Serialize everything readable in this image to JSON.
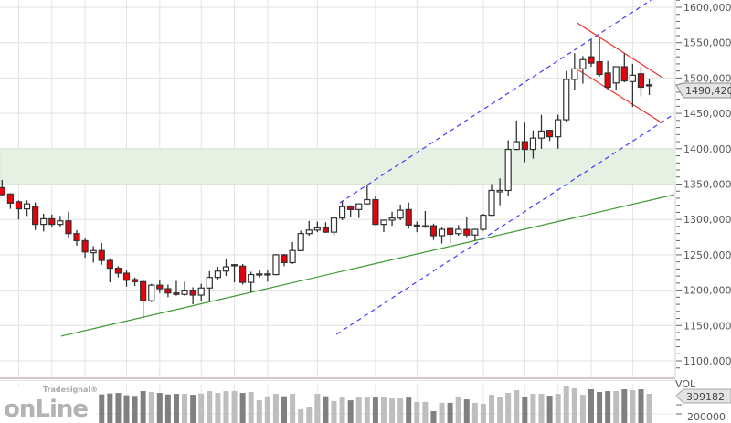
{
  "chart_data": {
    "type": "candlestick",
    "title": "",
    "y_axis": {
      "min": 1080,
      "max": 1610,
      "ticks": [
        "1100,0000",
        "1150,0000",
        "1200,0000",
        "1250,0000",
        "1300,0000",
        "1350,0000",
        "1400,0000",
        "1450,0000",
        "1500,0000",
        "1550,0000",
        "1600,0000"
      ],
      "tick_values": [
        1100,
        1150,
        1200,
        1250,
        1300,
        1350,
        1400,
        1450,
        1500,
        1550,
        1600
      ]
    },
    "grid": true,
    "last_price_label": "1490,4200",
    "last_price": 1490.42,
    "ohlc": [
      [
        1345,
        1356,
        1333,
        1335
      ],
      [
        1336,
        1337,
        1315,
        1323
      ],
      [
        1325,
        1327,
        1300,
        1315
      ],
      [
        1315,
        1327,
        1305,
        1322
      ],
      [
        1318,
        1324,
        1285,
        1293
      ],
      [
        1293,
        1308,
        1283,
        1301
      ],
      [
        1301,
        1307,
        1289,
        1293
      ],
      [
        1293,
        1305,
        1290,
        1298
      ],
      [
        1298,
        1311,
        1275,
        1280
      ],
      [
        1280,
        1285,
        1263,
        1270
      ],
      [
        1270,
        1273,
        1246,
        1254
      ],
      [
        1253,
        1262,
        1239,
        1256
      ],
      [
        1256,
        1267,
        1236,
        1242
      ],
      [
        1242,
        1245,
        1211,
        1231
      ],
      [
        1231,
        1234,
        1218,
        1224
      ],
      [
        1224,
        1229,
        1205,
        1214
      ],
      [
        1215,
        1218,
        1206,
        1212
      ],
      [
        1212,
        1215,
        1162,
        1185
      ],
      [
        1185,
        1209,
        1183,
        1207
      ],
      [
        1207,
        1215,
        1196,
        1202
      ],
      [
        1202,
        1208,
        1190,
        1196
      ],
      [
        1196,
        1213,
        1192,
        1194
      ],
      [
        1194,
        1212,
        1192,
        1200
      ],
      [
        1200,
        1204,
        1180,
        1193
      ],
      [
        1193,
        1209,
        1184,
        1203
      ],
      [
        1203,
        1227,
        1184,
        1218
      ],
      [
        1218,
        1233,
        1215,
        1227
      ],
      [
        1227,
        1244,
        1220,
        1233
      ],
      [
        1236,
        1237,
        1211,
        1236
      ],
      [
        1234,
        1237,
        1208,
        1211
      ],
      [
        1211,
        1226,
        1197,
        1222
      ],
      [
        1223,
        1229,
        1218,
        1223
      ],
      [
        1223,
        1229,
        1212,
        1223
      ],
      [
        1222,
        1251,
        1221,
        1250
      ],
      [
        1250,
        1251,
        1234,
        1239
      ],
      [
        1239,
        1268,
        1237,
        1256
      ],
      [
        1256,
        1284,
        1255,
        1280
      ],
      [
        1280,
        1298,
        1277,
        1285
      ],
      [
        1285,
        1297,
        1282,
        1288
      ],
      [
        1288,
        1296,
        1281,
        1282
      ],
      [
        1282,
        1303,
        1277,
        1302
      ],
      [
        1302,
        1326,
        1299,
        1318
      ],
      [
        1318,
        1320,
        1304,
        1314
      ],
      [
        1314,
        1322,
        1302,
        1322
      ],
      [
        1322,
        1348,
        1321,
        1328
      ],
      [
        1328,
        1333,
        1292,
        1293
      ],
      [
        1293,
        1299,
        1282,
        1299
      ],
      [
        1299,
        1311,
        1291,
        1302
      ],
      [
        1302,
        1321,
        1299,
        1313
      ],
      [
        1314,
        1324,
        1287,
        1292
      ],
      [
        1292,
        1297,
        1282,
        1292
      ],
      [
        1291,
        1312,
        1288,
        1291
      ],
      [
        1291,
        1294,
        1271,
        1277
      ],
      [
        1277,
        1289,
        1266,
        1286
      ],
      [
        1287,
        1289,
        1266,
        1279
      ],
      [
        1280,
        1292,
        1277,
        1286
      ],
      [
        1286,
        1304,
        1275,
        1278
      ],
      [
        1278,
        1287,
        1270,
        1286
      ],
      [
        1286,
        1308,
        1284,
        1306
      ],
      [
        1306,
        1350,
        1305,
        1341
      ],
      [
        1339,
        1358,
        1320,
        1341
      ],
      [
        1341,
        1412,
        1333,
        1399
      ],
      [
        1399,
        1440,
        1398,
        1410
      ],
      [
        1410,
        1437,
        1381,
        1399
      ],
      [
        1399,
        1426,
        1386,
        1415
      ],
      [
        1415,
        1448,
        1400,
        1425
      ],
      [
        1426,
        1427,
        1411,
        1417
      ],
      [
        1417,
        1448,
        1400,
        1441
      ],
      [
        1441,
        1510,
        1437,
        1498
      ],
      [
        1498,
        1535,
        1483,
        1513
      ],
      [
        1513,
        1531,
        1492,
        1526
      ],
      [
        1530,
        1555,
        1516,
        1521
      ],
      [
        1523,
        1557,
        1502,
        1505
      ],
      [
        1507,
        1524,
        1483,
        1487
      ],
      [
        1493,
        1516,
        1483,
        1516
      ],
      [
        1516,
        1535,
        1494,
        1496
      ],
      [
        1495,
        1520,
        1459,
        1504
      ],
      [
        1506,
        1516,
        1474,
        1487
      ],
      [
        1489,
        1498,
        1476,
        1490.42
      ]
    ],
    "volume": {
      "label": "VOL",
      "last_label": "309182",
      "ticks": [
        "200000"
      ],
      "values": [
        null,
        null,
        null,
        null,
        null,
        null,
        null,
        null,
        null,
        null,
        null,
        null,
        306000,
        311000,
        314000,
        301000,
        298000,
        324000,
        319000,
        314000,
        306000,
        309000,
        309000,
        304000,
        311000,
        324000,
        314000,
        324000,
        324000,
        314000,
        319000,
        274000,
        296000,
        309000,
        296000,
        309000,
        225000,
        236000,
        309000,
        296000,
        270000,
        289000,
        274000,
        289000,
        289000,
        289000,
        294000,
        284000,
        284000,
        289000,
        265000,
        265000,
        215000,
        260000,
        260000,
        294000,
        279000,
        260000,
        255000,
        304000,
        294000,
        314000,
        329000,
        294000,
        309000,
        309000,
        299000,
        309000,
        349000,
        339000,
        304000,
        334000,
        319000,
        324000,
        324000,
        334000,
        329000,
        334000,
        309182
      ]
    },
    "annotations": {
      "support_zone": {
        "from": 1350,
        "to": 1400,
        "color": "#e6f1e3"
      },
      "trendline": {
        "color": "#3a9a30",
        "points": [
          [
            7.1,
            1135
          ],
          [
            81,
            1335
          ]
        ]
      },
      "channel_upper": {
        "color": "#3b3bff",
        "style": "dashed",
        "points": [
          [
            40.7,
            1323.5
          ],
          [
            78.2,
            1610
          ]
        ]
      },
      "channel_lower": {
        "color": "#3b3bff",
        "style": "dashed",
        "points": [
          [
            40.3,
            1137.5
          ],
          [
            81,
            1449
          ]
        ]
      },
      "flag_upper": {
        "color": "#f03030",
        "points": [
          [
            69.3,
            1578
          ],
          [
            79.6,
            1500.5
          ]
        ]
      },
      "flag_lower": {
        "color": "#f03030",
        "points": [
          [
            69.5,
            1511
          ],
          [
            79.6,
            1436
          ]
        ]
      }
    },
    "colors": {
      "down": "#e8000b",
      "up": "#ffffff",
      "outline": "#333333",
      "vol_down": "#808080",
      "vol_up": "#bebebe"
    }
  },
  "logo": {
    "small": "Tradesignal®",
    "big": "onLine"
  }
}
